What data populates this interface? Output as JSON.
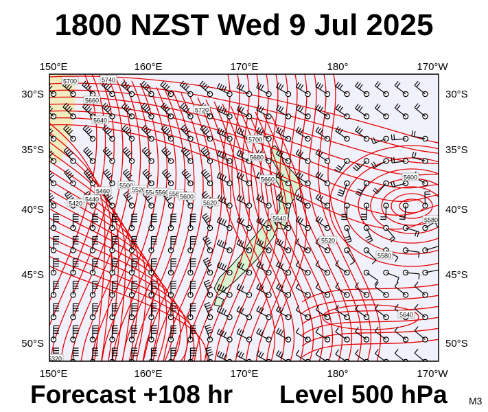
{
  "title": "1800 NZST Wed 9 Jul 2025",
  "forecast_label": "Forecast +108 hr",
  "level_label": "Level 500 hPa",
  "model_label": "M3",
  "axes": {
    "x_ticks": [
      "150°E",
      "160°E",
      "170°E",
      "180°",
      "170°W"
    ],
    "y_ticks": [
      "30°S",
      "35°S",
      "40°S",
      "45°S",
      "50°S"
    ]
  },
  "contour_labels": [
    "5700",
    "5740",
    "5660",
    "5640",
    "5720",
    "5700",
    "5680",
    "5660",
    "5500",
    "5520",
    "5540",
    "5560",
    "5580",
    "5460",
    "5440",
    "5420",
    "5600",
    "5620",
    "5640",
    "5600",
    "5580",
    "5520",
    "5640",
    "5580",
    "5320"
  ],
  "colors": {
    "background": "#f1f1fb",
    "contour": "#e60000",
    "land": "#d7f5d2",
    "west_land": "#f1ecc0",
    "barb": "#000000"
  },
  "icons": {
    "calm": "open-circle-icon",
    "barb": "wind-barb-icon"
  }
}
